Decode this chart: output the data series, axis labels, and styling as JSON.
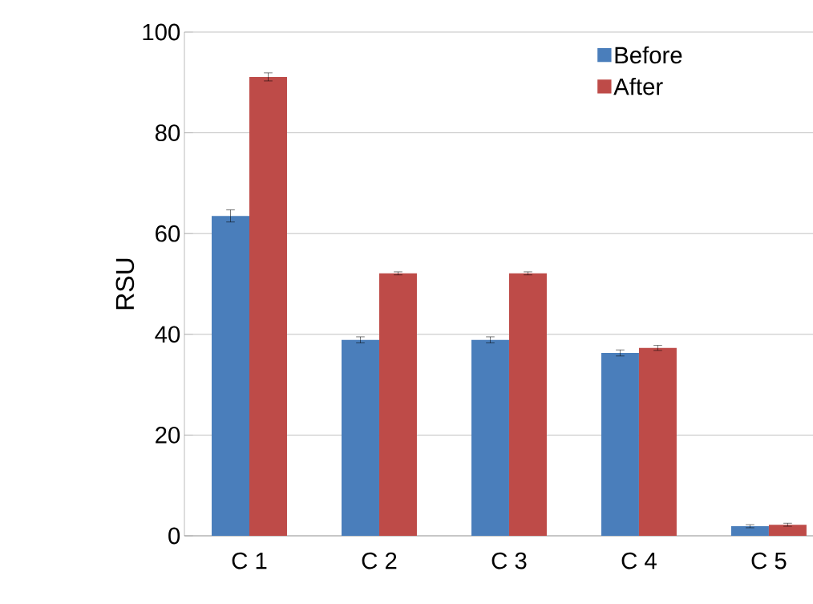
{
  "chart_data": {
    "type": "bar",
    "ylabel": "RSU",
    "categories": [
      "C 1",
      "C 2",
      "C 3",
      "C 4",
      "C 5"
    ],
    "series": [
      {
        "name": "Before",
        "color": "#4a7ebb",
        "values": [
          63.5,
          38.9,
          38.9,
          36.3,
          1.9
        ],
        "errors": [
          1.2,
          0.6,
          0.6,
          0.6,
          0.3
        ]
      },
      {
        "name": "After",
        "color": "#be4b48",
        "values": [
          91.1,
          52.1,
          52.1,
          37.3,
          2.2
        ],
        "errors": [
          0.8,
          0.3,
          0.3,
          0.5,
          0.3
        ]
      }
    ],
    "ylim": [
      0,
      100
    ],
    "yticks": [
      0,
      20,
      40,
      60,
      80,
      100
    ],
    "grid": "y",
    "legend": "top right"
  }
}
